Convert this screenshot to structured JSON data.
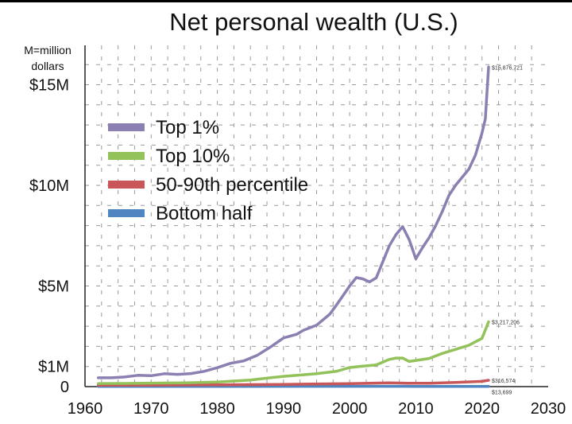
{
  "chart_data": {
    "type": "line",
    "title": "Net personal wealth (U.S.)",
    "unit_note": [
      "M=million",
      "dollars"
    ],
    "xlabel": "",
    "ylabel": "",
    "xlim": [
      1960,
      2030
    ],
    "ylim": [
      0,
      16500000
    ],
    "grid": true,
    "legend_position": "upper-left",
    "x_ticks": [
      {
        "value": 1960,
        "label": "1960"
      },
      {
        "value": 1970,
        "label": "1970"
      },
      {
        "value": 1980,
        "label": "1980"
      },
      {
        "value": 1990,
        "label": "1990"
      },
      {
        "value": 2000,
        "label": "2000"
      },
      {
        "value": 2010,
        "label": "2010"
      },
      {
        "value": 2020,
        "label": "2020"
      },
      {
        "value": 2030,
        "label": "2030"
      }
    ],
    "y_ticks": [
      {
        "value": 0,
        "label": "0"
      },
      {
        "value": 1000000,
        "label": "$1M"
      },
      {
        "value": 5000000,
        "label": "$5M"
      },
      {
        "value": 10000000,
        "label": "$10M"
      },
      {
        "value": 15000000,
        "label": "$15M"
      }
    ],
    "series": [
      {
        "name": "Top 1%",
        "color": "#8c7fb1",
        "end_label": "$15,876,721",
        "points": [
          [
            1962,
            440000
          ],
          [
            1964,
            440000
          ],
          [
            1966,
            480000
          ],
          [
            1968,
            560000
          ],
          [
            1970,
            540000
          ],
          [
            1972,
            640000
          ],
          [
            1974,
            610000
          ],
          [
            1976,
            650000
          ],
          [
            1978,
            760000
          ],
          [
            1980,
            940000
          ],
          [
            1982,
            1160000
          ],
          [
            1984,
            1280000
          ],
          [
            1986,
            1550000
          ],
          [
            1988,
            1960000
          ],
          [
            1990,
            2420000
          ],
          [
            1992,
            2600000
          ],
          [
            1993,
            2800000
          ],
          [
            1995,
            3050000
          ],
          [
            1997,
            3600000
          ],
          [
            1998,
            4050000
          ],
          [
            2000,
            5000000
          ],
          [
            2001,
            5420000
          ],
          [
            2002,
            5350000
          ],
          [
            2003,
            5200000
          ],
          [
            2004,
            5400000
          ],
          [
            2006,
            7000000
          ],
          [
            2007,
            7550000
          ],
          [
            2008,
            7950000
          ],
          [
            2009,
            7300000
          ],
          [
            2010,
            6350000
          ],
          [
            2011,
            6900000
          ],
          [
            2012,
            7400000
          ],
          [
            2013,
            8000000
          ],
          [
            2014,
            8700000
          ],
          [
            2015,
            9500000
          ],
          [
            2016,
            10000000
          ],
          [
            2017,
            10400000
          ],
          [
            2018,
            10800000
          ],
          [
            2019,
            11500000
          ],
          [
            2020,
            12600000
          ],
          [
            2020.5,
            13300000
          ],
          [
            2021,
            15876721
          ]
        ]
      },
      {
        "name": "Top 10%",
        "color": "#93c25a",
        "end_label": "$3,217,206",
        "points": [
          [
            1962,
            150000
          ],
          [
            1966,
            160000
          ],
          [
            1970,
            175000
          ],
          [
            1975,
            185000
          ],
          [
            1980,
            230000
          ],
          [
            1985,
            330000
          ],
          [
            1988,
            440000
          ],
          [
            1990,
            510000
          ],
          [
            1995,
            640000
          ],
          [
            1998,
            760000
          ],
          [
            2000,
            950000
          ],
          [
            2002,
            1020000
          ],
          [
            2004,
            1080000
          ],
          [
            2006,
            1350000
          ],
          [
            2007,
            1420000
          ],
          [
            2008,
            1420000
          ],
          [
            2009,
            1250000
          ],
          [
            2010,
            1300000
          ],
          [
            2012,
            1400000
          ],
          [
            2014,
            1650000
          ],
          [
            2016,
            1850000
          ],
          [
            2018,
            2050000
          ],
          [
            2020,
            2400000
          ],
          [
            2021,
            3217206
          ]
        ]
      },
      {
        "name": "50-90th percentile",
        "color": "#c9575a",
        "end_label": "$316,574",
        "points": [
          [
            1962,
            70000
          ],
          [
            1970,
            75000
          ],
          [
            1980,
            90000
          ],
          [
            1990,
            110000
          ],
          [
            2000,
            150000
          ],
          [
            2006,
            190000
          ],
          [
            2009,
            165000
          ],
          [
            2012,
            170000
          ],
          [
            2016,
            205000
          ],
          [
            2020,
            260000
          ],
          [
            2021,
            316574
          ]
        ]
      },
      {
        "name": "Bottom half",
        "color": "#4f85c0",
        "end_label": "$13,699",
        "points": [
          [
            1962,
            12000
          ],
          [
            1980,
            13000
          ],
          [
            2000,
            14000
          ],
          [
            2007,
            16000
          ],
          [
            2010,
            6000
          ],
          [
            2015,
            9000
          ],
          [
            2021,
            13699
          ]
        ]
      }
    ]
  }
}
